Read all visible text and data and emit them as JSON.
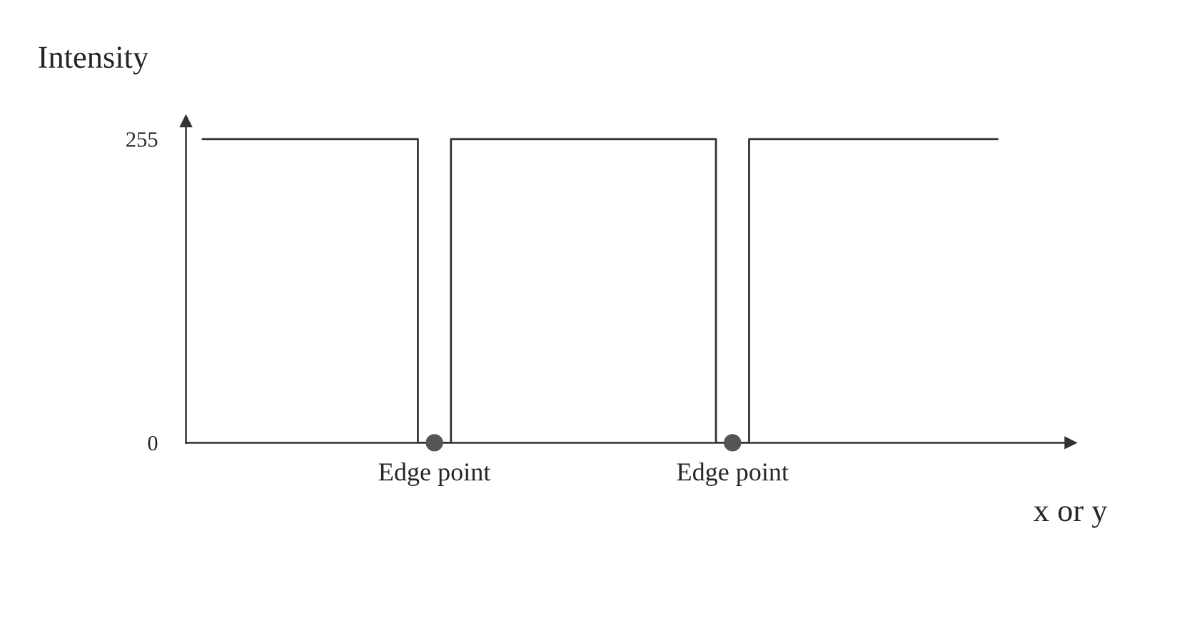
{
  "chart_data": {
    "type": "step",
    "xlabel": "x or y",
    "ylabel": "Intensity",
    "categories": [
      null,
      null,
      null,
      null,
      null,
      null,
      null,
      "Edge point",
      null,
      null,
      null,
      null,
      null,
      null,
      null,
      null,
      "Edge point",
      null,
      null,
      null,
      null,
      null,
      null,
      null,
      null
    ],
    "series": [
      {
        "color": "#333333",
        "values": [
          255,
          255,
          255,
          255,
          255,
          255,
          255,
          0,
          255,
          255,
          255,
          255,
          255,
          255,
          255,
          255,
          0,
          255,
          255,
          255,
          255,
          255,
          255,
          255,
          255
        ]
      },
      {
        "type": "scatter",
        "color": "#555555",
        "marker": "circle",
        "values": [
          null,
          null,
          null,
          null,
          null,
          null,
          null,
          0,
          null,
          null,
          null,
          null,
          null,
          null,
          null,
          null,
          0,
          null,
          null,
          null,
          null,
          null,
          null,
          null,
          null
        ]
      }
    ],
    "ylim": [
      0,
      270
    ],
    "yticks": [
      0,
      255
    ],
    "grid": false,
    "legend": false
  }
}
